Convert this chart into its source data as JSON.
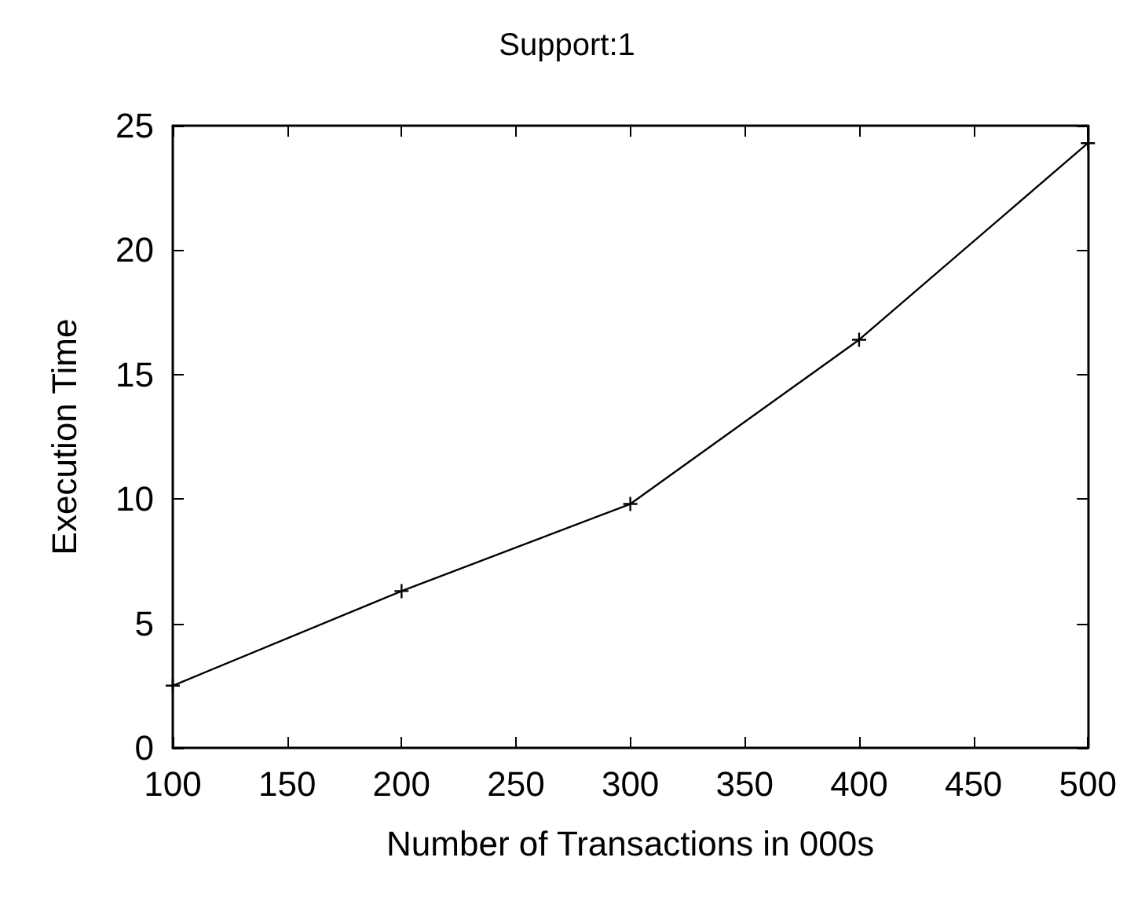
{
  "chart_data": {
    "type": "line",
    "title": "Support:1",
    "xlabel": "Number of Transactions in 000s",
    "ylabel": "Execution Time",
    "x": [
      100,
      200,
      300,
      400,
      500
    ],
    "series": [
      {
        "color": "#000000",
        "values": [
          2.5,
          6.3,
          9.8,
          16.4,
          24.3
        ]
      }
    ],
    "xlim": [
      100,
      500
    ],
    "xticks": [
      100,
      150,
      200,
      250,
      300,
      350,
      400,
      450,
      500
    ],
    "ylim": [
      0,
      25
    ],
    "yticks": [
      0,
      5,
      10,
      15,
      20,
      25
    ],
    "marker": "cross",
    "line_style": "solid"
  }
}
